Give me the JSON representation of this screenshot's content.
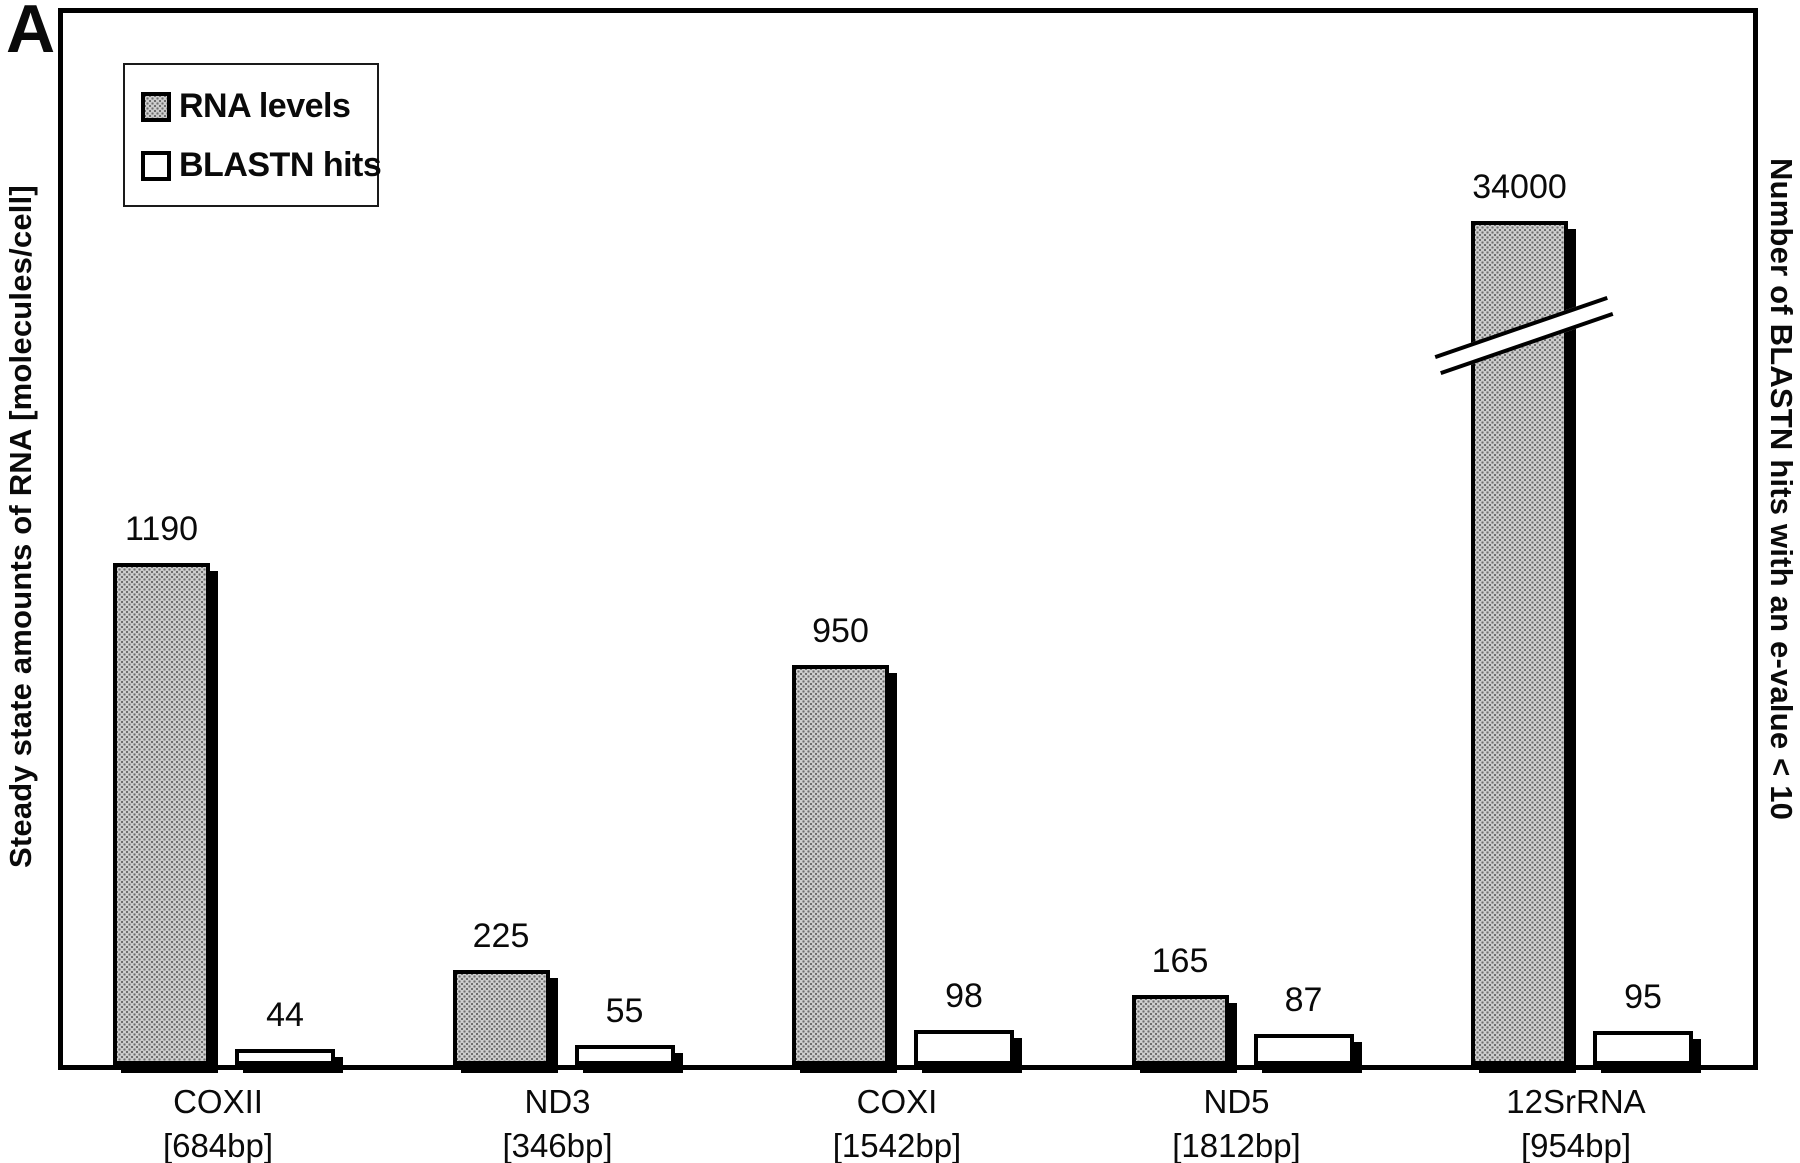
{
  "panel_label": "A",
  "legend": {
    "items": [
      {
        "label": "RNA levels",
        "swatch": "stippled-gray"
      },
      {
        "label": "BLASTN hits",
        "swatch": "white"
      }
    ]
  },
  "axes": {
    "left_label": "Steady state amounts of RNA [molecules/cell]",
    "right_label": "Number of BLASTN hits with an e-value < 10"
  },
  "colors": {
    "outline": "#000000",
    "rna_bar_fill": "#cfcfcf",
    "hits_bar_fill": "#ffffff",
    "background": "#ffffff"
  },
  "chart_data": {
    "type": "bar",
    "title": "",
    "xlabel": "",
    "ylabel_left": "Steady state amounts of RNA [molecules/cell]",
    "ylabel_right": "Number of BLASTN hits with an e-value < 10",
    "grid": false,
    "legend_position": "top-left",
    "categories": [
      {
        "name": "COXII",
        "size": "[684bp]"
      },
      {
        "name": "ND3",
        "size": "[346bp]"
      },
      {
        "name": "COXI",
        "size": "[1542bp]"
      },
      {
        "name": "ND5",
        "size": "[1812bp]"
      },
      {
        "name": "12SrRNA",
        "size": "[954bp]"
      }
    ],
    "series": [
      {
        "name": "RNA levels",
        "axis": "left",
        "values": [
          1190,
          225,
          950,
          165,
          34000
        ]
      },
      {
        "name": "BLASTN hits",
        "axis": "right",
        "values": [
          44,
          55,
          98,
          87,
          95
        ]
      }
    ],
    "axis_break": {
      "applies_to": {
        "series": "RNA levels",
        "category": "12SrRNA",
        "value": 34000
      },
      "style": "diagonal-slash-through-bar"
    }
  }
}
